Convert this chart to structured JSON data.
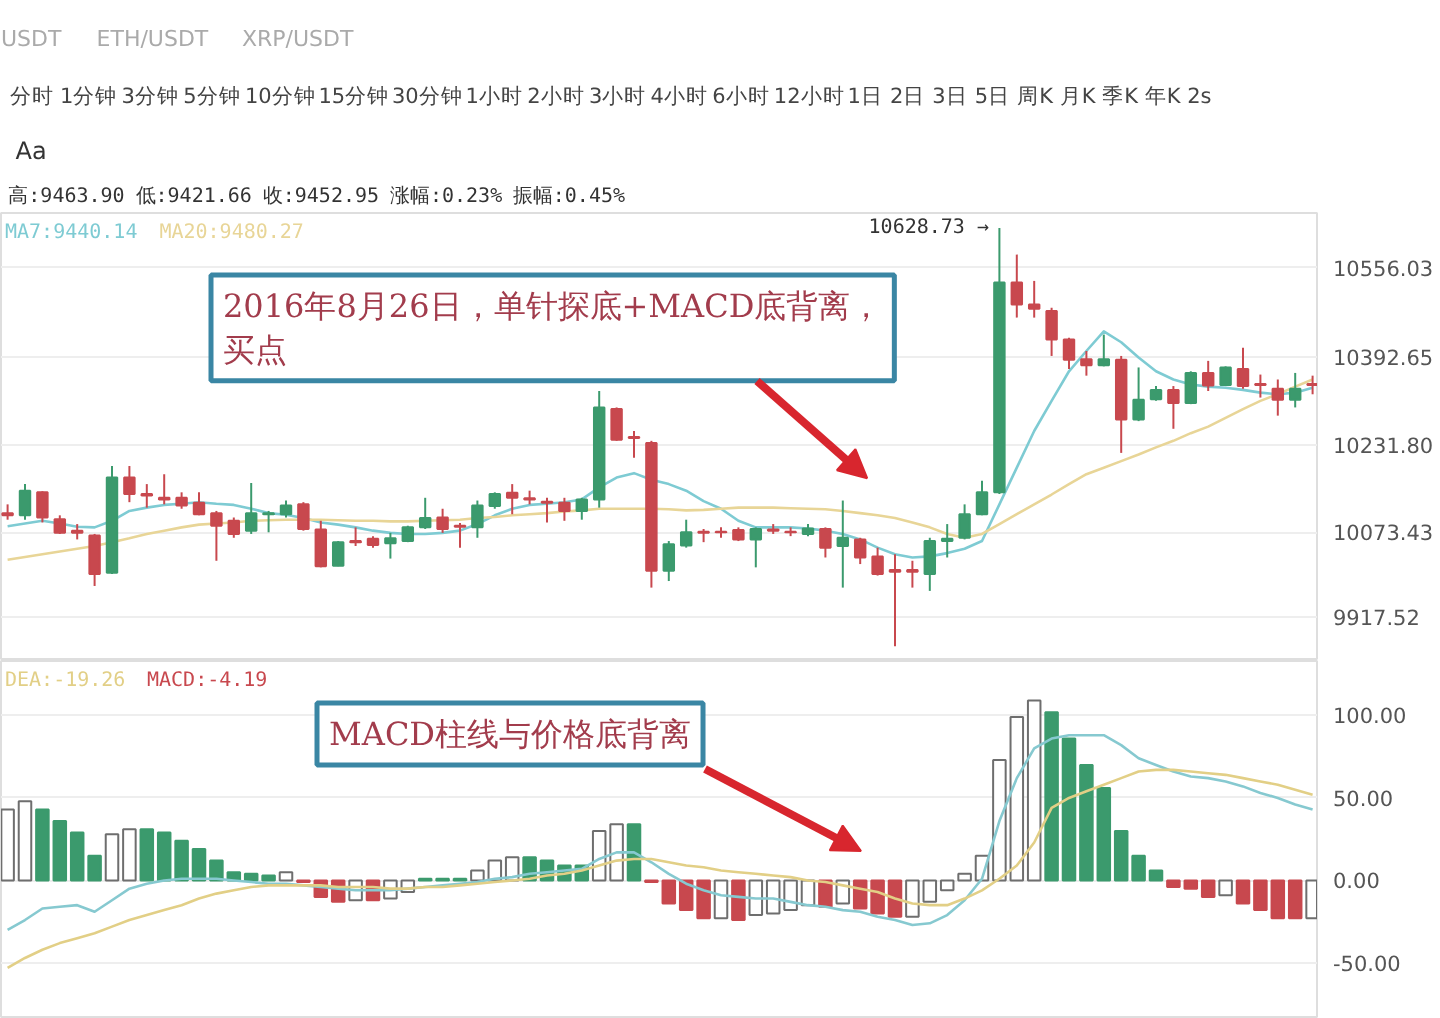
{
  "chart_data": [
    {
      "type": "candlestick",
      "categories": [
        null,
        null,
        null,
        null,
        null,
        null,
        null,
        null,
        null,
        null,
        null,
        null,
        null,
        null,
        null,
        null,
        null,
        null,
        null,
        null,
        null,
        null,
        null,
        null,
        null,
        null,
        null,
        null,
        null,
        null,
        null,
        null,
        null,
        null,
        null,
        null,
        null,
        null,
        null,
        null,
        null,
        null,
        null,
        null,
        null,
        null,
        null,
        null,
        null,
        null,
        null,
        null,
        null,
        null,
        null,
        null,
        null,
        null,
        null,
        null,
        null,
        null,
        null,
        null,
        null,
        null,
        null,
        null,
        null,
        null,
        null,
        null,
        null,
        null,
        null,
        null
      ],
      "ohlc": [
        [
          10108,
          10124,
          10096,
          10104
        ],
        [
          10104,
          10161,
          10096,
          10149
        ],
        [
          10146,
          10148,
          10091,
          10100
        ],
        [
          10097,
          10104,
          10070,
          10072
        ],
        [
          10076,
          10088,
          10060,
          10072
        ],
        [
          10067,
          10070,
          9975,
          9997
        ],
        [
          9999,
          10194,
          9997,
          10173
        ],
        [
          10173,
          10194,
          10128,
          10143
        ],
        [
          10143,
          10161,
          10118,
          10140
        ],
        [
          10136,
          10179,
          10124,
          10133
        ],
        [
          10136,
          10146,
          10116,
          10122
        ],
        [
          10127,
          10146,
          10104,
          10106
        ],
        [
          10108,
          10112,
          10021,
          10085
        ],
        [
          10094,
          10100,
          10063,
          10070
        ],
        [
          10076,
          10163,
          10070,
          10108
        ],
        [
          10106,
          10112,
          10073,
          10108
        ],
        [
          10106,
          10131,
          10100,
          10122
        ],
        [
          10124,
          10128,
          10076,
          10079
        ],
        [
          10078,
          10094,
          10009,
          10011
        ],
        [
          10012,
          10057,
          10011,
          10055
        ],
        [
          10057,
          10082,
          10048,
          10055
        ],
        [
          10061,
          10066,
          10045,
          10050
        ],
        [
          10053,
          10072,
          10025,
          10062
        ],
        [
          10057,
          10085,
          10055,
          10082
        ],
        [
          10082,
          10136,
          10079,
          10099
        ],
        [
          10100,
          10116,
          10072,
          10079
        ],
        [
          10085,
          10090,
          10045,
          10083
        ],
        [
          10082,
          10131,
          10063,
          10122
        ],
        [
          10121,
          10146,
          10116,
          10143
        ],
        [
          10145,
          10161,
          10106,
          10136
        ],
        [
          10135,
          10149,
          10124,
          10133
        ],
        [
          10129,
          10136,
          10091,
          10127
        ],
        [
          10127,
          10136,
          10094,
          10112
        ],
        [
          10112,
          10136,
          10096,
          10133
        ],
        [
          10133,
          10331,
          10118,
          10301
        ],
        [
          10298,
          10301,
          10240,
          10242
        ],
        [
          10247,
          10258,
          10209,
          10245
        ],
        [
          10236,
          10240,
          9972,
          10003
        ],
        [
          10003,
          10057,
          9984,
          10051
        ],
        [
          10049,
          10096,
          10045,
          10073
        ],
        [
          10074,
          10079,
          10055,
          10072
        ],
        [
          10074,
          10082,
          10063,
          10073
        ],
        [
          10077,
          10082,
          10057,
          10060
        ],
        [
          10060,
          10082,
          10009,
          10079
        ],
        [
          10078,
          10088,
          10070,
          10076
        ],
        [
          10074,
          10082,
          10066,
          10073
        ],
        [
          10070,
          10088,
          10066,
          10080
        ],
        [
          10079,
          10082,
          10027,
          10045
        ],
        [
          10048,
          10131,
          9972,
          10063
        ],
        [
          10060,
          10063,
          10015,
          10027
        ],
        [
          10029,
          10045,
          9994,
          9997
        ],
        [
          10004,
          10033,
          9865,
          10001
        ],
        [
          10004,
          10021,
          9972,
          10001
        ],
        [
          9997,
          10063,
          9966,
          10057
        ],
        [
          10057,
          10088,
          10027,
          10061
        ],
        [
          10063,
          10124,
          10060,
          10106
        ],
        [
          10106,
          10167,
          10104,
          10146
        ],
        [
          10146,
          10628.73,
          10143,
          10529
        ],
        [
          10529,
          10580,
          10465,
          10489
        ],
        [
          10489,
          10532,
          10465,
          10481
        ],
        [
          10477,
          10483,
          10395,
          10425
        ],
        [
          10425,
          10428,
          10371,
          10388
        ],
        [
          10389,
          10404,
          10359,
          10378
        ],
        [
          10378,
          10434,
          10376,
          10389
        ],
        [
          10388,
          10395,
          10218,
          10279
        ],
        [
          10279,
          10374,
          10276,
          10315
        ],
        [
          10316,
          10340,
          10313,
          10333
        ],
        [
          10333,
          10340,
          10262,
          10309
        ],
        [
          10309,
          10367,
          10307,
          10364
        ],
        [
          10364,
          10386,
          10331,
          10341
        ],
        [
          10342,
          10376,
          10340,
          10374
        ],
        [
          10371,
          10410,
          10335,
          10340
        ],
        [
          10344,
          10361,
          10319,
          10342
        ],
        [
          10335,
          10352,
          10286,
          10315
        ],
        [
          10315,
          10364,
          10301,
          10335
        ],
        [
          10344,
          10359,
          10325,
          10342
        ]
      ],
      "colors": [
        "#c8484e",
        "#3b9a6d",
        "#c8484e",
        "#c8484e",
        "#c8484e",
        "#c8484e",
        "#3b9a6d",
        "#c8484e",
        "#c8484e",
        "#c8484e",
        "#c8484e",
        "#c8484e",
        "#c8484e",
        "#c8484e",
        "#3b9a6d",
        "#3b9a6d",
        "#3b9a6d",
        "#c8484e",
        "#c8484e",
        "#3b9a6d",
        "#c8484e",
        "#c8484e",
        "#3b9a6d",
        "#3b9a6d",
        "#3b9a6d",
        "#c8484e",
        "#c8484e",
        "#3b9a6d",
        "#3b9a6d",
        "#c8484e",
        "#c8484e",
        "#c8484e",
        "#c8484e",
        "#3b9a6d",
        "#3b9a6d",
        "#c8484e",
        "#c8484e",
        "#c8484e",
        "#3b9a6d",
        "#3b9a6d",
        "#c8484e",
        "#c8484e",
        "#c8484e",
        "#3b9a6d",
        "#c8484e",
        "#c8484e",
        "#3b9a6d",
        "#c8484e",
        "#3b9a6d",
        "#c8484e",
        "#c8484e",
        "#c8484e",
        "#c8484e",
        "#3b9a6d",
        "#3b9a6d",
        "#3b9a6d",
        "#3b9a6d",
        "#3b9a6d",
        "#c8484e",
        "#c8484e",
        "#c8484e",
        "#c8484e",
        "#c8484e",
        "#3b9a6d",
        "#c8484e",
        "#3b9a6d",
        "#3b9a6d",
        "#c8484e",
        "#3b9a6d",
        "#c8484e",
        "#3b9a6d",
        "#c8484e",
        "#c8484e",
        "#c8484e",
        "#3b9a6d",
        "#c8484e"
      ],
      "value_labels": [
        null,
        null,
        null,
        null,
        null,
        null,
        null,
        null,
        null,
        null,
        null,
        null,
        null,
        null,
        null,
        null,
        null,
        null,
        null,
        null,
        null,
        null,
        null,
        null,
        null,
        null,
        null,
        null,
        null,
        null,
        null,
        null,
        null,
        null,
        null,
        null,
        null,
        null,
        null,
        null,
        null,
        null,
        null,
        null,
        null,
        null,
        null,
        null,
        null,
        null,
        null,
        null,
        null,
        null,
        null,
        null,
        null,
        "10628.73 →",
        null,
        null,
        null,
        null,
        null,
        null,
        null,
        null,
        null,
        null,
        null,
        null,
        null,
        null,
        null,
        null,
        null,
        null
      ],
      "series": [
        {
          "type": "line",
          "name": "MA7:9440.14",
          "color": "#7ecbd3",
          "values": [
            10084,
            10089,
            10094,
            10089,
            10083,
            10082,
            10094,
            10112,
            10118,
            10123,
            10125,
            10128,
            10125,
            10123,
            10116,
            10108,
            10105,
            10099,
            10091,
            10087,
            10082,
            10076,
            10072,
            10070,
            10070,
            10072,
            10076,
            10088,
            10104,
            10116,
            10123,
            10125,
            10128,
            10133,
            10155,
            10173,
            10181,
            10169,
            10161,
            10149,
            10130,
            10116,
            10094,
            10082,
            10082,
            10082,
            10080,
            10076,
            10070,
            10060,
            10045,
            10033,
            10027,
            10029,
            10035,
            10043,
            10057,
            10124,
            10191,
            10258,
            10313,
            10367,
            10404,
            10440,
            10420,
            10392,
            10367,
            10352,
            10343,
            10339,
            10337,
            10333,
            10328,
            10325,
            10328,
            10337
          ]
        },
        {
          "type": "line",
          "name": "MA20:9480.27",
          "color": "#e8d597",
          "values": [
            10023,
            10028,
            10033,
            10038,
            10043,
            10048,
            10055,
            10062,
            10070,
            10076,
            10082,
            10087,
            10089,
            10091,
            10094,
            10095,
            10096,
            10096,
            10096,
            10095,
            10094,
            10094,
            10093,
            10093,
            10094,
            10095,
            10096,
            10099,
            10101,
            10104,
            10106,
            10108,
            10111,
            10113,
            10116,
            10116,
            10116,
            10116,
            10115,
            10113,
            10114,
            10116,
            10118,
            10118,
            10118,
            10117,
            10116,
            10115,
            10112,
            10108,
            10104,
            10099,
            10091,
            10082,
            10070,
            10063,
            10070,
            10088,
            10106,
            10124,
            10142,
            10161,
            10179,
            10191,
            10203,
            10215,
            10228,
            10240,
            10254,
            10266,
            10282,
            10298,
            10313,
            10325,
            10339,
            10352
          ]
        }
      ],
      "ylim": [
        9838,
        10656
      ],
      "yticks": [
        9917.52,
        10073.43,
        {
          "value": 10231.8,
          "label": "10231.80"
        },
        10392.65,
        10556.03
      ],
      "grid": "y",
      "legend": "top left",
      "annotations": [
        "USDT",
        "ETH/USDT",
        "XRP/USDT",
        "分时",
        "1分钟",
        "3分钟",
        "5分钟",
        "10分钟",
        "15分钟",
        "30分钟",
        "1小时",
        "2小时",
        "3小时",
        "4小时",
        "6小时",
        "12小时",
        "1日",
        "2日",
        "3日",
        "5日",
        "周K",
        "月K",
        "季K",
        "年K",
        "2s",
        "Aa",
        "高:9463.90",
        "低:9421.66",
        "收:9452.95",
        "涨幅:0.23%",
        "振幅:0.45%",
        "2016年8月26日，单针探底+MACD底背离，买点"
      ]
    },
    {
      "type": "bar",
      "categories": [
        null,
        null,
        null,
        null,
        null,
        null,
        null,
        null,
        null,
        null,
        null,
        null,
        null,
        null,
        null,
        null,
        null,
        null,
        null,
        null,
        null,
        null,
        null,
        null,
        null,
        null,
        null,
        null,
        null,
        null,
        null,
        null,
        null,
        null,
        null,
        null,
        null,
        null,
        null,
        null,
        null,
        null,
        null,
        null,
        null,
        null,
        null,
        null,
        null,
        null,
        null,
        null,
        null,
        null,
        null,
        null,
        null,
        null,
        null,
        null,
        null,
        null,
        null,
        null,
        null,
        null,
        null,
        null,
        null,
        null,
        null,
        null,
        null,
        null,
        null,
        null
      ],
      "series": [
        {
          "type": "line",
          "color": "#86c9d0",
          "values": [
            -30,
            -24,
            -17,
            -16,
            -15,
            -19,
            -12,
            -5,
            -2,
            0,
            1,
            1,
            1,
            0,
            -1,
            -2,
            -2,
            -3,
            -4,
            -5,
            -6,
            -6,
            -6,
            -5,
            -4,
            -3,
            -2,
            -1,
            1,
            2,
            4,
            5,
            6,
            7,
            13,
            17,
            17,
            11,
            4,
            -2,
            -6,
            -9,
            -10,
            -11,
            -11,
            -13,
            -15,
            -16,
            -18,
            -19,
            -22,
            -24,
            -27,
            -26,
            -21,
            -12,
            1,
            36,
            62,
            80,
            86,
            88,
            88,
            88,
            82,
            74,
            70,
            66,
            63,
            62,
            60,
            57,
            53,
            50,
            46,
            43
          ]
        },
        {
          "type": "line",
          "name": "DEA:-19.26",
          "color": "#e2cf86",
          "values": [
            -53,
            -47,
            -42,
            -38,
            -35,
            -32,
            -28,
            -24,
            -21,
            -18,
            -15,
            -11,
            -8,
            -6,
            -4,
            -3,
            -3,
            -3,
            -3,
            -4,
            -4,
            -4,
            -5,
            -5,
            -4,
            -4,
            -3,
            -2,
            -1,
            0,
            1,
            3,
            4,
            6,
            9,
            12,
            13,
            13,
            11,
            9,
            8,
            6,
            5,
            4,
            3,
            2,
            0,
            -1,
            -3,
            -5,
            -7,
            -11,
            -14,
            -15,
            -15,
            -11,
            -6,
            1,
            9,
            23,
            44,
            50,
            54,
            58,
            62,
            66,
            67,
            67,
            66,
            65,
            64,
            62,
            60,
            58,
            55,
            52
          ]
        },
        {
          "type": "bar",
          "name": "MACD:-4.19",
          "color": "#c8484e",
          "colors": [
            "#ffffff",
            "#ffffff",
            "#3b9a6d",
            "#3b9a6d",
            "#3b9a6d",
            "#3b9a6d",
            "#ffffff",
            "#ffffff",
            "#3b9a6d",
            "#3b9a6d",
            "#3b9a6d",
            "#3b9a6d",
            "#3b9a6d",
            "#3b9a6d",
            "#3b9a6d",
            "#3b9a6d",
            "#ffffff",
            "#c8484e",
            "#c8484e",
            "#c8484e",
            "#ffffff",
            "#c8484e",
            "#ffffff",
            "#ffffff",
            "#3b9a6d",
            "#3b9a6d",
            "#3b9a6d",
            "#ffffff",
            "#ffffff",
            "#ffffff",
            "#3b9a6d",
            "#3b9a6d",
            "#3b9a6d",
            "#3b9a6d",
            "#ffffff",
            "#ffffff",
            "#3b9a6d",
            "#c8484e",
            "#c8484e",
            "#c8484e",
            "#c8484e",
            "#ffffff",
            "#c8484e",
            "#ffffff",
            "#ffffff",
            "#ffffff",
            "#ffffff",
            "#c8484e",
            "#ffffff",
            "#c8484e",
            "#c8484e",
            "#c8484e",
            "#ffffff",
            "#ffffff",
            "#ffffff",
            "#ffffff",
            "#ffffff",
            "#ffffff",
            "#ffffff",
            "#ffffff",
            "#3b9a6d",
            "#3b9a6d",
            "#3b9a6d",
            "#3b9a6d",
            "#3b9a6d",
            "#3b9a6d",
            "#3b9a6d",
            "#c8484e",
            "#c8484e",
            "#c8484e",
            "#ffffff",
            "#c8484e",
            "#c8484e",
            "#c8484e",
            "#c8484e",
            "#ffffff"
          ],
          "values": [
            43,
            48,
            43,
            36,
            29,
            15,
            28,
            31,
            31,
            29,
            24,
            19,
            12,
            5,
            4,
            3,
            5,
            -1,
            -10,
            -13,
            -12,
            -12,
            -11,
            -7,
            1,
            1,
            1,
            6,
            12,
            14,
            14,
            12,
            9,
            9,
            30,
            34,
            34,
            -1,
            -14,
            -18,
            -23,
            -23,
            -24,
            -21,
            -20,
            -18,
            -15,
            -16,
            -14,
            -17,
            -20,
            -22,
            -22,
            -13,
            -6,
            4,
            15,
            73,
            99,
            109,
            102,
            86,
            70,
            56,
            30,
            15,
            6,
            -4,
            -5,
            -10,
            -9,
            -14,
            -18,
            -23,
            -23,
            -23
          ]
        }
      ],
      "ylim": [
        -84,
        133
      ],
      "yticks": [
        {
          "value": -50,
          "label": "-50.00"
        },
        {
          "value": 0,
          "label": "0.00"
        },
        {
          "value": 50,
          "label": "50.00"
        },
        {
          "value": 100,
          "label": "100.00"
        }
      ],
      "grid": "y",
      "legend": "top left",
      "annotations": [
        "MACD柱线与价格底背离"
      ]
    }
  ]
}
